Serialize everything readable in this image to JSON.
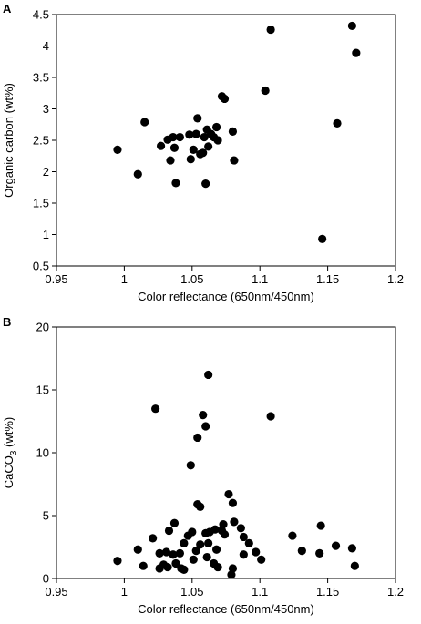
{
  "chart_data": [
    {
      "type": "scatter",
      "panel_label": "A",
      "xlabel": "Color reflectance (650nm/450nm)",
      "ylabel": "Organic carbon (wt%)",
      "xlim": [
        0.95,
        1.2
      ],
      "ylim": [
        0.5,
        4.5
      ],
      "xticks": [
        "0.95",
        "1",
        "1.05",
        "1.1",
        "1.15",
        "1.2"
      ],
      "yticks": [
        "0.5",
        "1",
        "1.5",
        "2",
        "2.5",
        "3",
        "3.5",
        "4",
        "4.5"
      ],
      "points": [
        {
          "x": 0.995,
          "y": 2.35
        },
        {
          "x": 1.01,
          "y": 1.96
        },
        {
          "x": 1.015,
          "y": 2.79
        },
        {
          "x": 1.027,
          "y": 2.41
        },
        {
          "x": 1.032,
          "y": 2.51
        },
        {
          "x": 1.034,
          "y": 2.18
        },
        {
          "x": 1.036,
          "y": 2.55
        },
        {
          "x": 1.037,
          "y": 2.38
        },
        {
          "x": 1.038,
          "y": 1.82
        },
        {
          "x": 1.041,
          "y": 2.55
        },
        {
          "x": 1.048,
          "y": 2.59
        },
        {
          "x": 1.049,
          "y": 2.2
        },
        {
          "x": 1.051,
          "y": 2.35
        },
        {
          "x": 1.053,
          "y": 2.6
        },
        {
          "x": 1.054,
          "y": 2.85
        },
        {
          "x": 1.056,
          "y": 2.28
        },
        {
          "x": 1.058,
          "y": 2.3
        },
        {
          "x": 1.059,
          "y": 2.55
        },
        {
          "x": 1.06,
          "y": 1.81
        },
        {
          "x": 1.061,
          "y": 2.67
        },
        {
          "x": 1.062,
          "y": 2.4
        },
        {
          "x": 1.064,
          "y": 2.6
        },
        {
          "x": 1.066,
          "y": 2.55
        },
        {
          "x": 1.068,
          "y": 2.71
        },
        {
          "x": 1.069,
          "y": 2.5
        },
        {
          "x": 1.072,
          "y": 3.2
        },
        {
          "x": 1.074,
          "y": 3.16
        },
        {
          "x": 1.08,
          "y": 2.64
        },
        {
          "x": 1.081,
          "y": 2.18
        },
        {
          "x": 1.104,
          "y": 3.29
        },
        {
          "x": 1.108,
          "y": 4.26
        },
        {
          "x": 1.146,
          "y": 0.93
        },
        {
          "x": 1.157,
          "y": 2.77
        },
        {
          "x": 1.168,
          "y": 4.32
        },
        {
          "x": 1.171,
          "y": 3.89
        }
      ]
    },
    {
      "type": "scatter",
      "panel_label": "B",
      "xlabel": "Color reflectance (650nm/450nm)",
      "ylabel_main": "CaCO",
      "ylabel_sub": "3",
      "ylabel_tail": " (wt%)",
      "xlim": [
        0.95,
        1.2
      ],
      "ylim": [
        0,
        20
      ],
      "xticks": [
        "0.95",
        "1",
        "1.05",
        "1.1",
        "1.15",
        "1.2"
      ],
      "yticks": [
        "0",
        "5",
        "10",
        "15",
        "20"
      ],
      "points": [
        {
          "x": 0.995,
          "y": 1.4
        },
        {
          "x": 1.01,
          "y": 2.3
        },
        {
          "x": 1.014,
          "y": 1.0
        },
        {
          "x": 1.021,
          "y": 3.2
        },
        {
          "x": 1.023,
          "y": 13.5
        },
        {
          "x": 1.026,
          "y": 0.8
        },
        {
          "x": 1.026,
          "y": 2.0
        },
        {
          "x": 1.029,
          "y": 1.1
        },
        {
          "x": 1.031,
          "y": 2.1
        },
        {
          "x": 1.032,
          "y": 0.9
        },
        {
          "x": 1.033,
          "y": 3.8
        },
        {
          "x": 1.036,
          "y": 1.9
        },
        {
          "x": 1.037,
          "y": 4.4
        },
        {
          "x": 1.038,
          "y": 1.2
        },
        {
          "x": 1.041,
          "y": 2.0
        },
        {
          "x": 1.042,
          "y": 0.8
        },
        {
          "x": 1.044,
          "y": 0.7
        },
        {
          "x": 1.044,
          "y": 2.8
        },
        {
          "x": 1.047,
          "y": 3.4
        },
        {
          "x": 1.049,
          "y": 9.0
        },
        {
          "x": 1.05,
          "y": 3.7
        },
        {
          "x": 1.051,
          "y": 1.5
        },
        {
          "x": 1.053,
          "y": 2.2
        },
        {
          "x": 1.054,
          "y": 5.9
        },
        {
          "x": 1.054,
          "y": 11.2
        },
        {
          "x": 1.056,
          "y": 5.7
        },
        {
          "x": 1.056,
          "y": 2.7
        },
        {
          "x": 1.058,
          "y": 13.0
        },
        {
          "x": 1.06,
          "y": 12.1
        },
        {
          "x": 1.06,
          "y": 3.6
        },
        {
          "x": 1.061,
          "y": 1.7
        },
        {
          "x": 1.062,
          "y": 16.2
        },
        {
          "x": 1.062,
          "y": 2.8
        },
        {
          "x": 1.063,
          "y": 3.7
        },
        {
          "x": 1.066,
          "y": 1.2
        },
        {
          "x": 1.067,
          "y": 3.9
        },
        {
          "x": 1.068,
          "y": 2.3
        },
        {
          "x": 1.069,
          "y": 0.9
        },
        {
          "x": 1.072,
          "y": 3.8
        },
        {
          "x": 1.073,
          "y": 4.3
        },
        {
          "x": 1.074,
          "y": 3.5
        },
        {
          "x": 1.077,
          "y": 6.7
        },
        {
          "x": 1.079,
          "y": 0.3
        },
        {
          "x": 1.08,
          "y": 0.8
        },
        {
          "x": 1.08,
          "y": 6.0
        },
        {
          "x": 1.081,
          "y": 4.5
        },
        {
          "x": 1.086,
          "y": 4.0
        },
        {
          "x": 1.088,
          "y": 1.9
        },
        {
          "x": 1.088,
          "y": 3.3
        },
        {
          "x": 1.092,
          "y": 2.8
        },
        {
          "x": 1.097,
          "y": 2.1
        },
        {
          "x": 1.101,
          "y": 1.5
        },
        {
          "x": 1.108,
          "y": 12.9
        },
        {
          "x": 1.124,
          "y": 3.4
        },
        {
          "x": 1.131,
          "y": 2.2
        },
        {
          "x": 1.144,
          "y": 2.0
        },
        {
          "x": 1.145,
          "y": 4.2
        },
        {
          "x": 1.156,
          "y": 2.6
        },
        {
          "x": 1.168,
          "y": 2.4
        },
        {
          "x": 1.17,
          "y": 1.0
        }
      ]
    }
  ]
}
